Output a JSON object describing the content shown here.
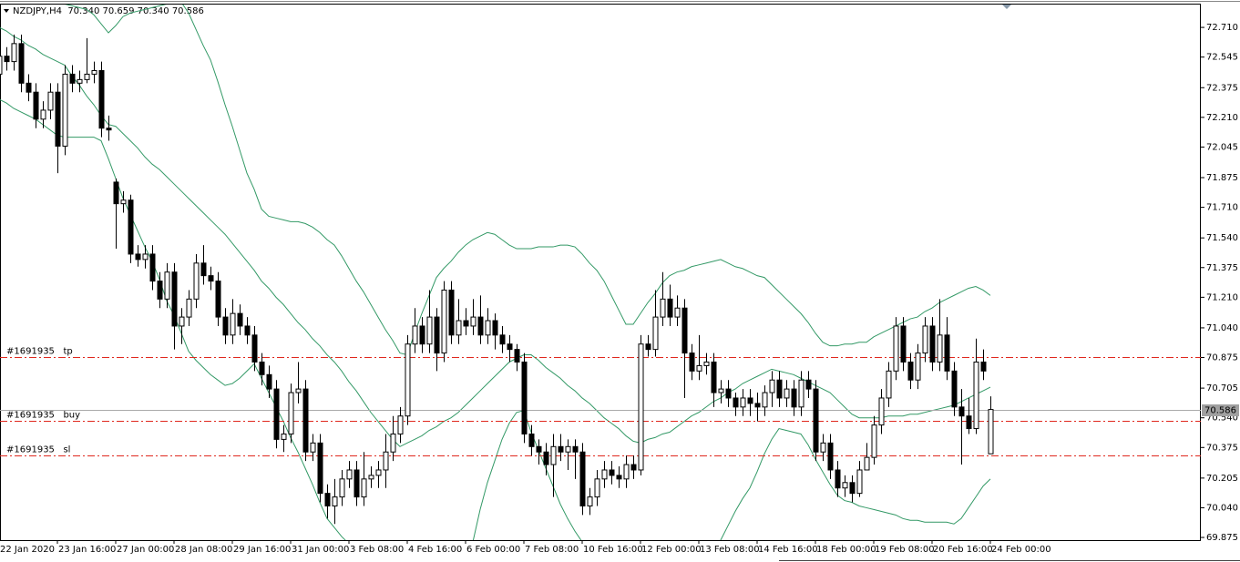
{
  "chart_data": {
    "type": "candlestick",
    "title": "NZDJPY,H4  70.340 70.659 70.340 70.586",
    "categories": [
      "22 Jan 2020",
      null,
      null,
      null,
      null,
      null,
      null,
      null,
      "23 Jan 16:00",
      null,
      null,
      null,
      null,
      null,
      null,
      null,
      "27 Jan 00:00",
      null,
      null,
      null,
      null,
      null,
      null,
      null,
      "28 Jan 08:00",
      null,
      null,
      null,
      null,
      null,
      null,
      null,
      "29 Jan 16:00",
      null,
      null,
      null,
      null,
      null,
      null,
      null,
      "31 Jan 00:00",
      null,
      null,
      null,
      null,
      null,
      null,
      null,
      "3 Feb 08:00",
      null,
      null,
      null,
      null,
      null,
      null,
      null,
      "4 Feb 16:00",
      null,
      null,
      null,
      null,
      null,
      null,
      null,
      "6 Feb 00:00",
      null,
      null,
      null,
      null,
      null,
      null,
      null,
      "7 Feb 08:00",
      null,
      null,
      null,
      null,
      null,
      null,
      null,
      "10 Feb 16:00",
      null,
      null,
      null,
      null,
      null,
      null,
      null,
      "12 Feb 00:00",
      null,
      null,
      null,
      null,
      null,
      null,
      null,
      "13 Feb 08:00",
      null,
      null,
      null,
      null,
      null,
      null,
      null,
      "14 Feb 16:00",
      null,
      null,
      null,
      null,
      null,
      null,
      null,
      "18 Feb 00:00",
      null,
      null,
      null,
      null,
      null,
      null,
      null,
      "19 Feb 08:00",
      null,
      null,
      null,
      null,
      null,
      null,
      null,
      "20 Feb 16:00",
      null,
      null,
      null,
      null,
      null,
      null,
      null,
      "24 Feb 00:00"
    ],
    "open": [
      72.45,
      72.55,
      72.52,
      72.62,
      72.4,
      72.35,
      72.2,
      72.25,
      72.35,
      72.05,
      72.45,
      72.4,
      72.42,
      72.45,
      72.47,
      72.15,
      71.85,
      71.73,
      71.75,
      71.45,
      71.42,
      71.45,
      71.3,
      71.2,
      71.35,
      71.05,
      71.1,
      71.2,
      71.4,
      71.33,
      71.3,
      71.1,
      71.0,
      71.12,
      71.05,
      71.0,
      70.85,
      70.78,
      70.7,
      70.42,
      70.45,
      70.68,
      70.7,
      70.35,
      70.4,
      70.12,
      70.05,
      70.1,
      70.2,
      70.25,
      70.1,
      70.2,
      70.22,
      70.25,
      70.35,
      70.45,
      70.55,
      70.95,
      71.05,
      70.95,
      71.1,
      70.9,
      71.25,
      71.0,
      71.08,
      71.05,
      71.1,
      71.0,
      71.08,
      71.0,
      70.95,
      70.92,
      70.85,
      70.45,
      70.38,
      70.35,
      70.28,
      70.38,
      70.35,
      70.38,
      70.35,
      70.05,
      70.1,
      70.2,
      70.25,
      70.22,
      70.2,
      70.28,
      70.25,
      70.95,
      70.92,
      71.1,
      71.2,
      71.1,
      71.15,
      70.9,
      70.8,
      70.83,
      70.85,
      70.68,
      70.7,
      70.65,
      70.6,
      70.65,
      70.62,
      70.6,
      70.68,
      70.75,
      70.65,
      70.7,
      70.6,
      70.75,
      70.7,
      70.35,
      70.4,
      70.25,
      70.15,
      70.18,
      70.12,
      70.25,
      70.32,
      70.5,
      70.65,
      70.8,
      71.05,
      70.85,
      70.75,
      70.9,
      71.05,
      70.85,
      71.0,
      70.8,
      70.6,
      70.55,
      70.48,
      70.85,
      70.34
    ],
    "high": [
      72.6,
      72.6,
      72.67,
      72.67,
      72.45,
      72.4,
      72.3,
      72.4,
      72.4,
      72.5,
      72.5,
      72.47,
      72.65,
      72.52,
      72.52,
      72.22,
      71.87,
      71.8,
      71.78,
      71.5,
      71.5,
      71.5,
      71.35,
      71.4,
      71.4,
      71.15,
      71.25,
      71.45,
      71.5,
      71.38,
      71.35,
      71.15,
      71.2,
      71.17,
      71.1,
      71.05,
      70.9,
      70.83,
      70.75,
      70.5,
      70.73,
      70.85,
      70.75,
      70.45,
      70.45,
      70.17,
      70.2,
      70.25,
      70.3,
      70.3,
      70.35,
      70.27,
      70.3,
      70.45,
      70.55,
      70.6,
      71.0,
      71.15,
      71.1,
      71.25,
      71.15,
      71.3,
      71.3,
      71.2,
      71.15,
      71.2,
      71.22,
      71.15,
      71.12,
      71.05,
      71.0,
      70.95,
      70.9,
      70.5,
      70.42,
      70.4,
      70.45,
      70.45,
      70.42,
      70.42,
      70.4,
      70.15,
      70.25,
      70.3,
      70.3,
      70.27,
      70.33,
      70.33,
      71.0,
      71.0,
      71.25,
      71.35,
      71.28,
      71.22,
      71.2,
      70.95,
      71.0,
      70.9,
      70.9,
      70.75,
      70.75,
      70.68,
      70.7,
      70.7,
      70.68,
      70.72,
      70.8,
      70.8,
      70.75,
      70.75,
      70.8,
      70.8,
      70.75,
      70.45,
      70.45,
      70.3,
      70.22,
      70.22,
      70.3,
      70.4,
      70.55,
      70.7,
      70.85,
      71.1,
      71.1,
      70.9,
      70.95,
      71.1,
      71.1,
      71.2,
      71.1,
      70.85,
      70.7,
      70.65,
      70.98,
      70.92,
      70.659
    ],
    "low": [
      72.4,
      72.47,
      72.47,
      72.35,
      72.3,
      72.15,
      72.15,
      72.2,
      71.9,
      72.0,
      72.35,
      72.35,
      72.4,
      72.4,
      72.1,
      72.08,
      71.48,
      71.68,
      71.4,
      71.38,
      71.37,
      71.25,
      71.15,
      71.15,
      70.92,
      70.95,
      71.05,
      71.15,
      71.28,
      71.25,
      71.05,
      70.95,
      70.95,
      71.0,
      70.95,
      70.8,
      70.72,
      70.65,
      70.37,
      70.35,
      70.4,
      70.62,
      70.3,
      70.3,
      70.07,
      69.98,
      69.95,
      70.05,
      70.15,
      70.05,
      70.05,
      70.15,
      70.15,
      70.15,
      70.3,
      70.4,
      70.5,
      70.9,
      70.9,
      70.9,
      70.8,
      70.85,
      70.95,
      70.95,
      71.0,
      71.0,
      70.95,
      70.95,
      70.92,
      70.9,
      70.85,
      70.8,
      70.4,
      70.33,
      70.28,
      70.22,
      70.1,
      70.3,
      70.25,
      70.2,
      70.0,
      70.0,
      70.05,
      70.15,
      70.17,
      70.15,
      70.15,
      70.2,
      70.22,
      70.88,
      70.88,
      71.05,
      71.05,
      71.05,
      70.65,
      70.75,
      70.75,
      70.78,
      70.6,
      70.62,
      70.6,
      70.55,
      70.55,
      70.55,
      70.52,
      70.55,
      70.6,
      70.6,
      70.6,
      70.55,
      70.55,
      70.65,
      70.3,
      70.3,
      70.2,
      70.1,
      70.1,
      70.07,
      70.1,
      70.25,
      70.28,
      70.45,
      70.6,
      70.75,
      70.8,
      70.7,
      70.7,
      70.85,
      70.8,
      70.8,
      70.75,
      70.55,
      70.28,
      70.45,
      70.45,
      70.75,
      70.34
    ],
    "close": [
      72.55,
      72.52,
      72.62,
      72.4,
      72.35,
      72.2,
      72.25,
      72.35,
      72.05,
      72.45,
      72.4,
      72.42,
      72.45,
      72.47,
      72.15,
      72.14,
      71.73,
      71.75,
      71.45,
      71.42,
      71.45,
      71.3,
      71.2,
      71.35,
      71.05,
      71.1,
      71.2,
      71.4,
      71.33,
      71.3,
      71.1,
      71.0,
      71.12,
      71.05,
      71.0,
      70.85,
      70.78,
      70.7,
      70.42,
      70.45,
      70.68,
      70.7,
      70.35,
      70.4,
      70.12,
      70.05,
      70.1,
      70.2,
      70.25,
      70.1,
      70.2,
      70.22,
      70.25,
      70.35,
      70.45,
      70.55,
      70.95,
      71.05,
      70.95,
      71.1,
      70.9,
      71.25,
      71.0,
      71.08,
      71.05,
      71.1,
      71.0,
      71.08,
      71.0,
      70.95,
      70.92,
      70.85,
      70.45,
      70.38,
      70.35,
      70.28,
      70.38,
      70.35,
      70.38,
      70.35,
      70.05,
      70.1,
      70.2,
      70.25,
      70.22,
      70.2,
      70.28,
      70.25,
      70.95,
      70.92,
      71.1,
      71.2,
      71.1,
      71.15,
      70.9,
      70.8,
      70.83,
      70.85,
      70.68,
      70.7,
      70.65,
      70.6,
      70.65,
      70.62,
      70.6,
      70.68,
      70.75,
      70.65,
      70.7,
      70.6,
      70.75,
      70.7,
      70.35,
      70.4,
      70.25,
      70.15,
      70.18,
      70.12,
      70.25,
      70.32,
      70.5,
      70.65,
      70.8,
      71.05,
      70.85,
      70.75,
      70.9,
      71.05,
      70.85,
      71.0,
      70.8,
      70.6,
      70.55,
      70.48,
      70.85,
      70.8,
      70.586
    ],
    "up_color": "#ffffff",
    "down_color": "#000000",
    "bands": [
      {
        "color": "#339966",
        "values": [
          72.96,
          72.95,
          72.94,
          72.93,
          72.91,
          72.9,
          72.88,
          72.87,
          72.85,
          72.84,
          72.83,
          72.82,
          72.81,
          72.78,
          72.73,
          72.68,
          72.72,
          72.77,
          72.79,
          72.8,
          72.81,
          72.82,
          72.83,
          72.84,
          72.84,
          72.85,
          72.79,
          72.7,
          72.61,
          72.53,
          72.41,
          72.28,
          72.16,
          72.03,
          71.9,
          71.81,
          71.7,
          71.66,
          71.65,
          71.64,
          71.63,
          71.63,
          71.62,
          71.6,
          71.57,
          71.53,
          71.5,
          71.44,
          71.37,
          71.3,
          71.24,
          71.17,
          71.1,
          71.03,
          70.97,
          70.9,
          70.89,
          71.01,
          71.12,
          71.22,
          71.32,
          71.37,
          71.41,
          71.46,
          71.5,
          71.53,
          71.55,
          71.57,
          71.56,
          71.53,
          71.5,
          71.48,
          71.48,
          71.48,
          71.49,
          71.49,
          71.49,
          71.5,
          71.5,
          71.49,
          71.45,
          71.4,
          71.36,
          71.3,
          71.22,
          71.14,
          71.06,
          71.06,
          71.12,
          71.18,
          71.23,
          71.29,
          71.33,
          71.35,
          71.36,
          71.38,
          71.39,
          71.4,
          71.41,
          71.42,
          71.4,
          71.38,
          71.37,
          71.35,
          71.33,
          71.32,
          71.28,
          71.24,
          71.2,
          71.16,
          71.12,
          71.07,
          71.01,
          70.96,
          70.94,
          70.94,
          70.95,
          70.95,
          70.96,
          70.96,
          70.99,
          71.01,
          71.03,
          71.05,
          71.07,
          71.09,
          71.1,
          71.13,
          71.15,
          71.18,
          71.2,
          71.22,
          71.24,
          71.26,
          71.27,
          71.25,
          71.22
        ]
      },
      {
        "color": "#339966",
        "values": [
          72.71,
          72.69,
          72.66,
          72.64,
          72.61,
          72.59,
          72.56,
          72.54,
          72.52,
          72.5,
          72.44,
          72.39,
          72.33,
          72.28,
          72.22,
          72.17,
          72.16,
          72.12,
          72.08,
          72.04,
          71.99,
          71.95,
          71.92,
          71.88,
          71.84,
          71.8,
          71.76,
          71.72,
          71.68,
          71.64,
          71.6,
          71.56,
          71.51,
          71.46,
          71.41,
          71.36,
          71.3,
          71.26,
          71.21,
          71.17,
          71.12,
          71.07,
          71.03,
          70.98,
          70.94,
          70.89,
          70.85,
          70.8,
          70.74,
          70.69,
          70.63,
          70.57,
          70.52,
          70.47,
          70.42,
          70.38,
          70.4,
          70.42,
          70.44,
          70.47,
          70.49,
          70.52,
          70.54,
          70.57,
          70.61,
          70.65,
          70.69,
          70.73,
          70.77,
          70.81,
          70.85,
          70.87,
          70.89,
          70.89,
          70.86,
          70.82,
          70.79,
          70.76,
          70.72,
          70.69,
          70.65,
          70.62,
          70.58,
          70.54,
          70.51,
          70.48,
          70.44,
          70.41,
          70.4,
          70.42,
          70.43,
          70.45,
          70.46,
          70.49,
          70.52,
          70.55,
          70.57,
          70.6,
          70.63,
          70.65,
          70.68,
          70.7,
          70.73,
          70.75,
          70.77,
          70.79,
          70.81,
          70.8,
          70.79,
          70.78,
          70.76,
          70.74,
          70.72,
          70.7,
          70.68,
          70.64,
          70.6,
          70.56,
          70.54,
          70.54,
          70.54,
          70.54,
          70.55,
          70.55,
          70.55,
          70.56,
          70.56,
          70.57,
          70.58,
          70.59,
          70.6,
          70.61,
          70.63,
          70.65,
          70.67,
          70.69,
          70.71
        ]
      },
      {
        "color": "#339966",
        "values": [
          72.31,
          72.29,
          72.26,
          72.24,
          72.22,
          72.2,
          72.17,
          72.14,
          72.11,
          72.1,
          72.1,
          72.1,
          72.1,
          72.1,
          72.08,
          71.98,
          71.87,
          71.76,
          71.67,
          71.58,
          71.49,
          71.41,
          71.31,
          71.19,
          71.11,
          71.01,
          70.91,
          70.86,
          70.82,
          70.78,
          70.75,
          70.72,
          70.73,
          70.76,
          70.8,
          70.84,
          70.76,
          70.68,
          70.6,
          70.52,
          70.43,
          70.35,
          70.26,
          70.17,
          70.07,
          69.98,
          69.93,
          69.88,
          69.84,
          69.83,
          69.82,
          69.81,
          69.8,
          69.79,
          69.78,
          69.76,
          69.75,
          69.74,
          69.73,
          69.71,
          69.7,
          69.73,
          69.76,
          69.79,
          69.82,
          69.85,
          70.03,
          70.18,
          70.3,
          70.42,
          70.51,
          70.57,
          70.58,
          70.46,
          70.36,
          70.26,
          70.16,
          70.06,
          69.98,
          69.91,
          69.85,
          69.81,
          69.78,
          69.74,
          69.71,
          69.67,
          69.63,
          69.6,
          69.61,
          69.62,
          69.63,
          69.65,
          69.66,
          69.67,
          69.69,
          69.7,
          69.73,
          69.77,
          69.81,
          69.86,
          69.94,
          70.02,
          70.09,
          70.15,
          70.24,
          70.34,
          70.42,
          70.48,
          70.47,
          70.46,
          70.45,
          70.39,
          70.31,
          70.24,
          70.17,
          70.11,
          70.08,
          70.07,
          70.05,
          70.04,
          70.03,
          70.02,
          70.01,
          70.0,
          69.98,
          69.97,
          69.97,
          69.96,
          69.96,
          69.96,
          69.96,
          69.95,
          69.98,
          70.04,
          70.1,
          70.16,
          70.2
        ]
      }
    ],
    "levels": [
      {
        "label": "#1691935   tp",
        "value": 70.88
      },
      {
        "label": "#1691935   buy",
        "value": 70.525
      },
      {
        "label": "#1691935   sl",
        "value": 70.33
      }
    ],
    "level_color": "#e0281e",
    "last_price": 70.586,
    "ylim": [
      69.86,
      72.837
    ],
    "yticks": [
      {
        "value": 72.71,
        "label": "72.710"
      },
      72.545,
      72.375,
      {
        "value": 72.21,
        "label": "72.210"
      },
      72.045,
      71.875,
      {
        "value": 71.71,
        "label": "71.710"
      },
      {
        "value": 71.54,
        "label": "71.540"
      },
      71.375,
      {
        "value": 71.21,
        "label": "71.210"
      },
      {
        "value": 71.04,
        "label": "71.040"
      },
      70.875,
      70.705,
      {
        "value": 70.54,
        "label": "70.540"
      },
      70.375,
      70.205,
      {
        "value": 70.04,
        "label": "70.040"
      },
      69.875
    ]
  }
}
